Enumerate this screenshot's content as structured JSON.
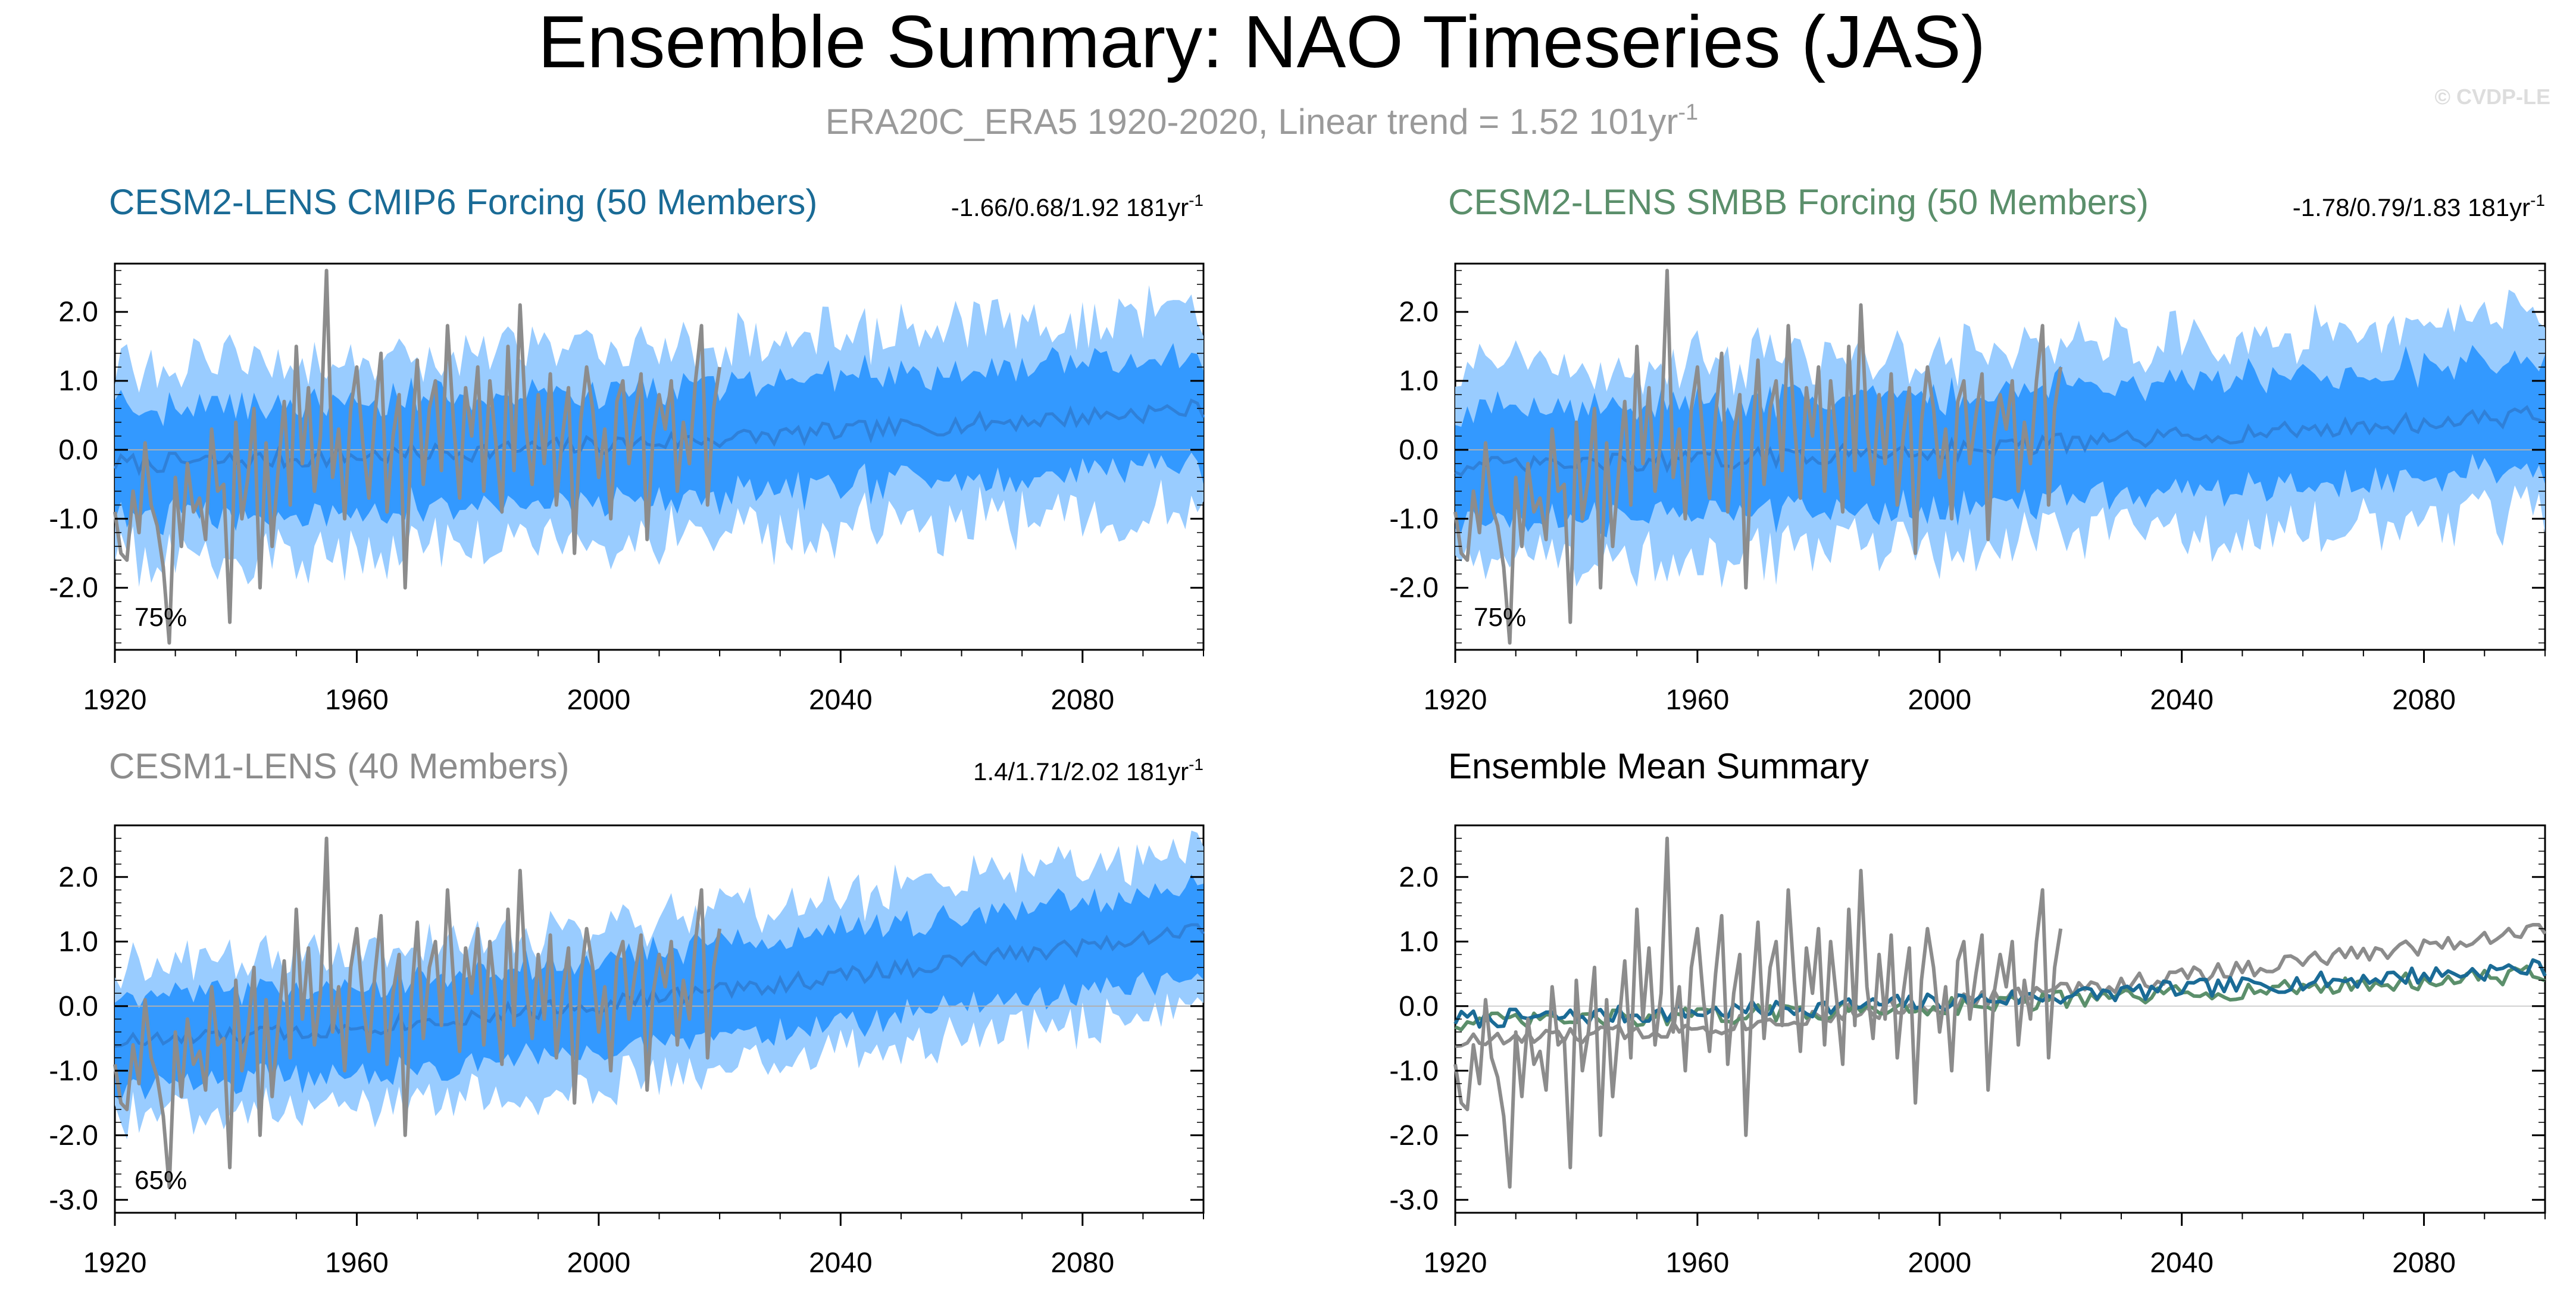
{
  "header": {
    "title": "Ensemble Summary: NAO Timeseries (JAS)",
    "subtitle_main": "ERA20C_ERA5 1920-2020, Linear trend = 1.52 101yr",
    "subtitle_sup": "-1",
    "watermark": "© CVDP-LE"
  },
  "colors": {
    "band_outer": "#99ccff",
    "band_inner": "#3399ff",
    "ens_mean": "#2f80d8",
    "obs": "#8c8c8c",
    "cesm2_cmip6": "#1a6b96",
    "cesm2_smbb": "#5b8f6b",
    "cesm1": "#8c8c8c"
  },
  "chart_data": [
    {
      "type": "area",
      "title": "CESM2-LENS CMIP6 Forcing (50 Members)",
      "title_color": "#1a6b96",
      "stats": "-1.66/0.68/1.92 181yr",
      "stats_sup": "-1",
      "percent_label": "75%",
      "x_range": [
        1920,
        2100
      ],
      "ylim": [
        -2.9,
        2.7
      ],
      "xticks": [
        1920,
        1960,
        2000,
        2040,
        2080
      ],
      "xtick_labels": [
        "1920",
        "1960",
        "2000",
        "2040",
        "2080"
      ],
      "yticks": [
        -2.0,
        -1.0,
        0.0,
        1.0,
        2.0
      ],
      "ytick_labels": [
        "-2.0",
        "-1.0",
        "0.0",
        "1.0",
        "2.0"
      ],
      "ensemble_mean": {
        "start": -0.2,
        "end": 0.6
      },
      "inner_band_halfwidth": 0.8,
      "outer_band_halfwidth": 1.4,
      "series": [
        {
          "name": "Ensemble mean"
        },
        {
          "name": "ERA20C_ERA5"
        }
      ]
    },
    {
      "type": "area",
      "title": "CESM2-LENS SMBB Forcing (50 Members)",
      "title_color": "#5b8f6b",
      "stats": "-1.78/0.79/1.83 181yr",
      "stats_sup": "-1",
      "percent_label": "75%",
      "x_range": [
        1920,
        2100
      ],
      "ylim": [
        -2.9,
        2.7
      ],
      "xticks": [
        1920,
        1960,
        2000,
        2040,
        2080
      ],
      "xtick_labels": [
        "1920",
        "1960",
        "2000",
        "2040",
        "2080"
      ],
      "yticks": [
        -2.0,
        -1.0,
        0.0,
        1.0,
        2.0
      ],
      "ytick_labels": [
        "-2.0",
        "-1.0",
        "0.0",
        "1.0",
        "2.0"
      ],
      "ensemble_mean": {
        "start": -0.25,
        "end": 0.5
      },
      "inner_band_halfwidth": 0.8,
      "outer_band_halfwidth": 1.4,
      "series": [
        {
          "name": "Ensemble mean"
        },
        {
          "name": "ERA20C_ERA5"
        }
      ]
    },
    {
      "type": "area",
      "title": "CESM1-LENS (40 Members)",
      "title_color": "#8c8c8c",
      "stats": "1.4/1.71/2.02 181yr",
      "stats_sup": "-1",
      "percent_label": "65%",
      "x_range": [
        1920,
        2100
      ],
      "ylim": [
        -3.2,
        2.8
      ],
      "xticks": [
        1920,
        1960,
        2000,
        2040,
        2080
      ],
      "xtick_labels": [
        "1920",
        "1960",
        "2000",
        "2040",
        "2080"
      ],
      "yticks": [
        -3.0,
        -2.0,
        -1.0,
        0.0,
        1.0,
        2.0
      ],
      "ytick_labels": [
        "-3.0",
        "-2.0",
        "-1.0",
        "0.0",
        "1.0",
        "2.0"
      ],
      "ensemble_mean": {
        "start": -0.55,
        "end": 1.2
      },
      "inner_band_halfwidth": 0.7,
      "outer_band_halfwidth": 1.2,
      "series": [
        {
          "name": "Ensemble mean"
        },
        {
          "name": "ERA20C_ERA5"
        }
      ]
    },
    {
      "type": "line",
      "title": "Ensemble Mean Summary",
      "title_color": "#000000",
      "x_range": [
        1920,
        2100
      ],
      "ylim": [
        -3.2,
        2.8
      ],
      "xticks": [
        1920,
        1960,
        2000,
        2040,
        2080
      ],
      "xtick_labels": [
        "1920",
        "1960",
        "2000",
        "2040",
        "2080"
      ],
      "yticks": [
        -3.0,
        -2.0,
        -1.0,
        0.0,
        1.0,
        2.0
      ],
      "ytick_labels": [
        "-3.0",
        "-2.0",
        "-1.0",
        "0.0",
        "1.0",
        "2.0"
      ],
      "series": [
        {
          "name": "CESM1-LENS",
          "start": -0.55,
          "end": 1.2
        },
        {
          "name": "CESM2-LENS SMBB",
          "start": -0.25,
          "end": 0.5
        },
        {
          "name": "CESM2-LENS CMIP6",
          "start": -0.2,
          "end": 0.6
        },
        {
          "name": "ERA20C_ERA5"
        }
      ]
    }
  ],
  "obs_series": {
    "name": "ERA20C_ERA5",
    "start_year": 1920,
    "values": [
      -0.9,
      -1.5,
      -1.6,
      -0.6,
      -1.2,
      0.1,
      -0.8,
      -1.1,
      -1.7,
      -2.8,
      -0.4,
      -1.4,
      -0.2,
      -0.9,
      -0.7,
      -1.3,
      0.3,
      -0.6,
      -0.5,
      -2.5,
      0.4,
      -1.0,
      -0.4,
      0.6,
      -2.0,
      0.1,
      -1.4,
      -0.3,
      0.7,
      -0.8,
      1.5,
      -0.2,
      0.9,
      -0.6,
      0.2,
      2.6,
      -0.4,
      0.3,
      -1.0,
      0.6,
      1.2,
      0.1,
      -0.7,
      0.5,
      1.4,
      -0.9,
      0.2,
      0.8,
      -2.0,
      0.1,
      1.3,
      -0.5,
      0.6,
      1.0,
      -0.3,
      1.8,
      0.4,
      -0.7,
      0.9,
      0.2,
      1.2,
      -0.6,
      1.0,
      0.1,
      -0.9,
      1.5,
      -0.3,
      2.1,
      0.3,
      -0.5,
      0.8,
      -0.2,
      1.1,
      -0.8,
      0.2,
      0.9,
      -1.5,
      0.4,
      1.2,
      0.6,
      -0.4,
      0.3,
      -1.0,
      0.7,
      1.0,
      -0.2,
      0.5,
      1.1,
      -1.3,
      0.2,
      0.8,
      0.3,
      1.0,
      -0.6,
      0.4,
      -0.2,
      1.0,
      1.8,
      -0.8,
      0.6,
      1.2
    ]
  }
}
